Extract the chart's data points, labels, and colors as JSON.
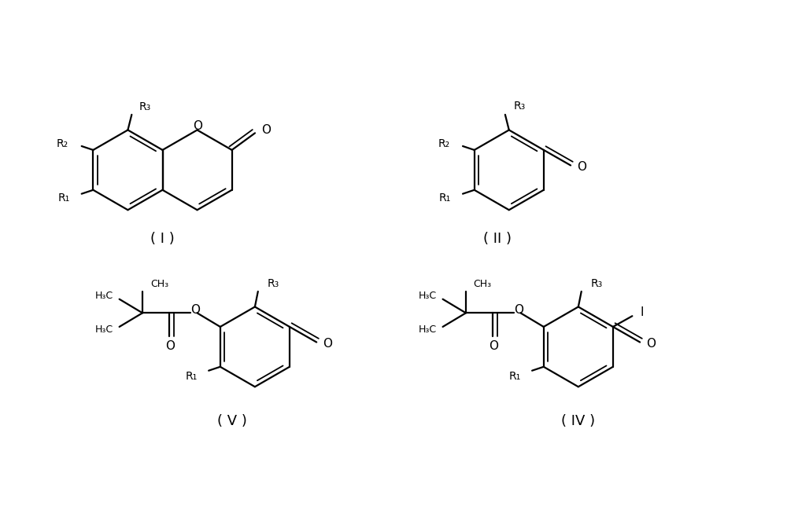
{
  "bg_color": "#ffffff",
  "line_color": "#000000",
  "text_color": "#000000",
  "fig_width": 10.0,
  "fig_height": 6.44,
  "label_I": "( I )",
  "label_II": "( II )",
  "label_V": "( V )",
  "label_IV": "( IV )"
}
